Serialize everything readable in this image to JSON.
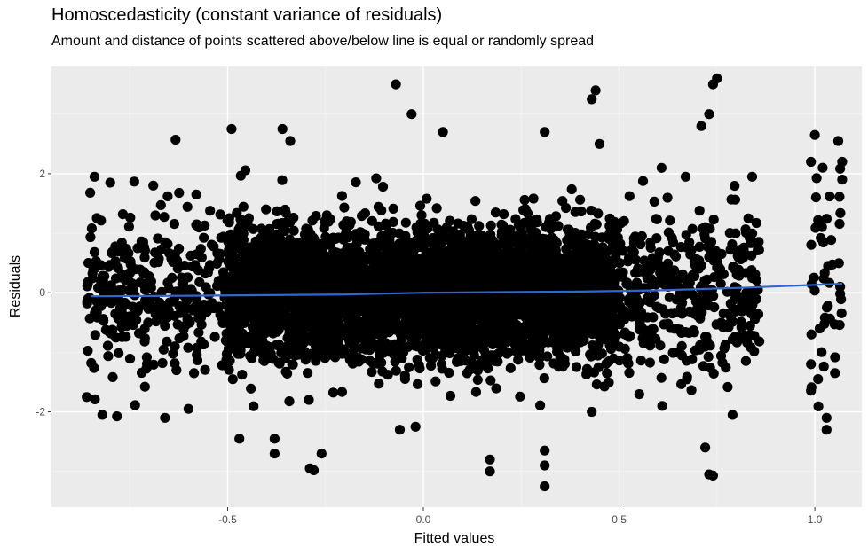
{
  "chart_data": {
    "type": "scatter",
    "title": "Homoscedasticity (constant variance of residuals)",
    "subtitle": "Amount and distance of points scattered above/below line is equal or randomly spread",
    "xlabel": "Fitted values",
    "ylabel": "Residuals",
    "xlim": [
      -0.95,
      1.12
    ],
    "ylim": [
      -3.6,
      3.8
    ],
    "x_ticks": [
      -0.5,
      0.0,
      0.5,
      1.0
    ],
    "x_tick_labels": [
      "-0.5",
      "0.0",
      "0.5",
      "1.0"
    ],
    "y_ticks": [
      -2,
      0,
      2
    ],
    "y_tick_labels": [
      "-2",
      "0",
      "2"
    ],
    "grid": true,
    "legend": "none",
    "point_color": "#000000",
    "smooth_color": "#3366cc",
    "panel_color": "#ebebeb",
    "smooth_line": {
      "x": [
        -0.85,
        -0.6,
        -0.4,
        -0.2,
        0.0,
        0.2,
        0.4,
        0.6,
        0.8,
        1.07
      ],
      "y": [
        -0.06,
        -0.05,
        -0.04,
        -0.03,
        0.0,
        0.01,
        0.02,
        0.04,
        0.08,
        0.15
      ]
    },
    "highlight_points": [
      {
        "x": -0.07,
        "y": 3.5
      },
      {
        "x": -0.03,
        "y": 3.0
      },
      {
        "x": 0.44,
        "y": 3.4
      },
      {
        "x": 0.43,
        "y": 3.25
      },
      {
        "x": 0.75,
        "y": 3.6
      },
      {
        "x": 0.74,
        "y": 3.5
      },
      {
        "x": 0.73,
        "y": 3.0
      },
      {
        "x": 0.71,
        "y": 2.8
      },
      {
        "x": -0.49,
        "y": 2.75
      },
      {
        "x": -0.36,
        "y": 2.75
      },
      {
        "x": -0.34,
        "y": 2.55
      },
      {
        "x": 0.05,
        "y": 2.7
      },
      {
        "x": 0.31,
        "y": 2.7
      },
      {
        "x": 0.45,
        "y": 2.5
      },
      {
        "x": 1.0,
        "y": 2.65
      },
      {
        "x": 1.06,
        "y": 2.55
      },
      {
        "x": -0.84,
        "y": 1.95
      },
      {
        "x": -0.8,
        "y": 1.85
      },
      {
        "x": -0.69,
        "y": 1.8
      },
      {
        "x": -0.58,
        "y": 1.65
      },
      {
        "x": 0.67,
        "y": 1.95
      },
      {
        "x": 0.84,
        "y": 1.95
      },
      {
        "x": 0.99,
        "y": 2.2
      },
      {
        "x": 1.02,
        "y": 2.1
      },
      {
        "x": 1.07,
        "y": 2.2
      },
      {
        "x": 1.07,
        "y": 1.9
      },
      {
        "x": -0.82,
        "y": -2.05
      },
      {
        "x": -0.66,
        "y": -2.1
      },
      {
        "x": -0.6,
        "y": -1.95
      },
      {
        "x": -0.47,
        "y": -2.45
      },
      {
        "x": -0.38,
        "y": -2.45
      },
      {
        "x": -0.38,
        "y": -2.7
      },
      {
        "x": -0.29,
        "y": -2.95
      },
      {
        "x": -0.28,
        "y": -2.98
      },
      {
        "x": -0.26,
        "y": -2.7
      },
      {
        "x": -0.06,
        "y": -2.3
      },
      {
        "x": -0.02,
        "y": -2.25
      },
      {
        "x": 0.17,
        "y": -2.8
      },
      {
        "x": 0.17,
        "y": -3.0
      },
      {
        "x": 0.31,
        "y": -2.65
      },
      {
        "x": 0.31,
        "y": -2.9
      },
      {
        "x": 0.31,
        "y": -3.25
      },
      {
        "x": 0.43,
        "y": -2.0
      },
      {
        "x": 0.72,
        "y": -2.6
      },
      {
        "x": 0.73,
        "y": -3.05
      },
      {
        "x": 0.74,
        "y": -3.07
      },
      {
        "x": 0.79,
        "y": -2.05
      },
      {
        "x": 1.03,
        "y": -2.1
      },
      {
        "x": 1.03,
        "y": -2.3
      },
      {
        "x": 0.99,
        "y": -1.2
      },
      {
        "x": -0.86,
        "y": -1.75
      },
      {
        "x": 0.61,
        "y": -1.9
      }
    ]
  }
}
